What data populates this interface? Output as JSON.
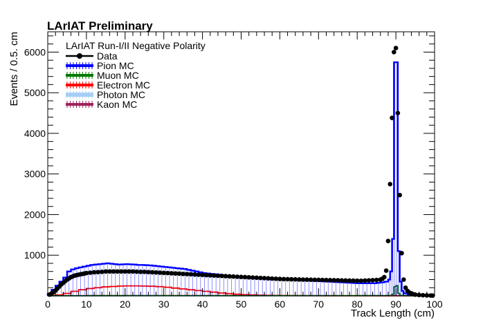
{
  "chart_data": {
    "type": "histogram",
    "title": "LArIAT Preliminary",
    "legend_header": "LArIAT Run-I/II Negative Polarity",
    "legend_position": "top-left",
    "xlabel": "Track Length (cm)",
    "ylabel": "Events / 0.5. cm",
    "xlim": [
      0,
      100
    ],
    "ylim": [
      0,
      6500
    ],
    "x_ticks": [
      0,
      10,
      20,
      30,
      40,
      50,
      60,
      70,
      80,
      90,
      100
    ],
    "x_tick_labels": [
      "0",
      "10",
      "20",
      "30",
      "40",
      "50",
      "60",
      "70",
      "80",
      "90",
      "100"
    ],
    "y_ticks": [
      1000,
      2000,
      3000,
      4000,
      5000,
      6000
    ],
    "y_tick_labels": [
      "1000",
      "2000",
      "3000",
      "4000",
      "5000",
      "6000"
    ],
    "bin_width": 0.5,
    "series": [
      {
        "name": "Data",
        "style": "markers",
        "color": "#000000",
        "x": [
          0.5,
          1,
          1.5,
          2,
          2.5,
          3,
          3.5,
          4,
          4.5,
          5,
          5.5,
          6,
          6.5,
          7,
          7.5,
          8,
          8.5,
          9,
          9.5,
          10,
          11,
          12,
          13,
          14,
          15,
          16,
          17,
          18,
          19,
          20,
          21,
          22,
          23,
          24,
          25,
          26,
          27,
          28,
          29,
          30,
          31,
          32,
          33,
          34,
          35,
          36,
          37,
          38,
          39,
          40,
          41,
          42,
          43,
          44,
          45,
          46,
          47,
          48,
          49,
          50,
          51,
          52,
          53,
          54,
          55,
          56,
          57,
          58,
          59,
          60,
          61,
          62,
          63,
          64,
          65,
          66,
          67,
          68,
          69,
          70,
          71,
          72,
          73,
          74,
          75,
          76,
          77,
          78,
          79,
          80,
          81,
          82,
          83,
          84,
          85,
          86,
          86.5,
          87,
          87.5,
          88,
          88.5,
          89,
          89.5,
          90,
          90.5,
          91,
          91.5,
          92,
          92.5,
          93,
          93.5,
          94,
          94.5,
          95,
          96,
          97,
          98,
          99,
          99.5
        ],
        "y": [
          30,
          60,
          90,
          130,
          180,
          230,
          280,
          320,
          360,
          400,
          430,
          460,
          480,
          500,
          510,
          520,
          530,
          540,
          550,
          560,
          570,
          580,
          585,
          590,
          600,
          600,
          600,
          600,
          600,
          600,
          600,
          600,
          595,
          590,
          590,
          585,
          580,
          575,
          570,
          565,
          560,
          555,
          550,
          545,
          540,
          535,
          530,
          525,
          520,
          515,
          510,
          505,
          500,
          495,
          490,
          485,
          480,
          475,
          470,
          465,
          460,
          455,
          450,
          445,
          440,
          435,
          430,
          425,
          420,
          415,
          412,
          410,
          408,
          405,
          402,
          400,
          398,
          396,
          394,
          392,
          390,
          388,
          386,
          384,
          382,
          380,
          378,
          376,
          374,
          372,
          370,
          375,
          380,
          385,
          390,
          400,
          420,
          460,
          620,
          1350,
          2750,
          4380,
          6000,
          6100,
          4500,
          2480,
          1050,
          400,
          200,
          120,
          80,
          60,
          40,
          30,
          20,
          15,
          10,
          8,
          5
        ]
      },
      {
        "name": "Pion MC",
        "style": "hist",
        "color": "#0000ff",
        "x": [
          0,
          1,
          2,
          3,
          4,
          5,
          6,
          7,
          8,
          9,
          10,
          11,
          12,
          13,
          14,
          15,
          16,
          17,
          18,
          19,
          20,
          21,
          22,
          23,
          24,
          25,
          26,
          27,
          28,
          29,
          30,
          31,
          32,
          33,
          34,
          35,
          36,
          37,
          38,
          39,
          40,
          41,
          42,
          43,
          44,
          45,
          46,
          47,
          48,
          49,
          50,
          51,
          52,
          53,
          54,
          55,
          56,
          57,
          58,
          59,
          60,
          61,
          62,
          63,
          64,
          65,
          66,
          67,
          68,
          69,
          70,
          71,
          72,
          73,
          74,
          75,
          76,
          77,
          78,
          79,
          80,
          81,
          82,
          83,
          84,
          85,
          86,
          87,
          88,
          88.5,
          89,
          89.5,
          90,
          90.5,
          91,
          91.5,
          92,
          93,
          94,
          95,
          96,
          97,
          98,
          99
        ],
        "y": [
          50,
          150,
          250,
          350,
          450,
          600,
          650,
          680,
          700,
          720,
          740,
          760,
          770,
          780,
          790,
          800,
          790,
          780,
          770,
          775,
          780,
          775,
          770,
          760,
          760,
          755,
          750,
          740,
          730,
          720,
          710,
          700,
          690,
          680,
          670,
          660,
          640,
          620,
          600,
          580,
          560,
          550,
          540,
          530,
          520,
          510,
          500,
          490,
          480,
          470,
          460,
          455,
          450,
          445,
          440,
          435,
          430,
          425,
          420,
          415,
          410,
          405,
          400,
          395,
          390,
          385,
          380,
          375,
          370,
          365,
          360,
          355,
          350,
          345,
          340,
          335,
          330,
          325,
          320,
          315,
          310,
          310,
          310,
          310,
          310,
          320,
          330,
          350,
          400,
          600,
          1400,
          5750,
          5750,
          1100,
          350,
          120,
          60,
          30,
          20,
          10,
          5,
          3,
          2,
          1
        ],
        "ylim_note": ""
      },
      {
        "name": "Muon MC",
        "style": "hist",
        "color": "#007a00",
        "x": [
          0,
          10,
          20,
          30,
          40,
          50,
          60,
          70,
          80,
          88,
          89,
          89.5,
          90,
          90.5,
          91,
          92,
          95
        ],
        "y": [
          2,
          3,
          4,
          4,
          4,
          4,
          4,
          4,
          5,
          8,
          40,
          220,
          250,
          60,
          10,
          3,
          1
        ]
      },
      {
        "name": "Electron MC",
        "style": "hist",
        "color": "#ff0000",
        "x": [
          0,
          2,
          4,
          6,
          8,
          10,
          12,
          14,
          16,
          18,
          20,
          22,
          24,
          26,
          28,
          30,
          32,
          34,
          36,
          38,
          40,
          42,
          44,
          46,
          48,
          50,
          52,
          54,
          56,
          58,
          60,
          65,
          70,
          75,
          80,
          85,
          90,
          95,
          100
        ],
        "y": [
          5,
          20,
          60,
          110,
          150,
          180,
          200,
          220,
          230,
          240,
          245,
          245,
          240,
          235,
          225,
          210,
          190,
          170,
          150,
          130,
          110,
          90,
          70,
          55,
          40,
          30,
          22,
          16,
          12,
          8,
          6,
          4,
          3,
          2,
          2,
          1,
          1,
          0,
          0
        ]
      },
      {
        "name": "Photon MC",
        "style": "hist",
        "color": "#a6cff5",
        "x": [
          0,
          100
        ],
        "y": [
          0,
          0
        ]
      },
      {
        "name": "Kaon MC",
        "style": "hist",
        "color": "#a0205e",
        "x": [
          0,
          10,
          20,
          30,
          40,
          50,
          60,
          70,
          80,
          90,
          100
        ],
        "y": [
          3,
          5,
          6,
          6,
          5,
          5,
          4,
          4,
          3,
          2,
          0
        ]
      }
    ]
  }
}
